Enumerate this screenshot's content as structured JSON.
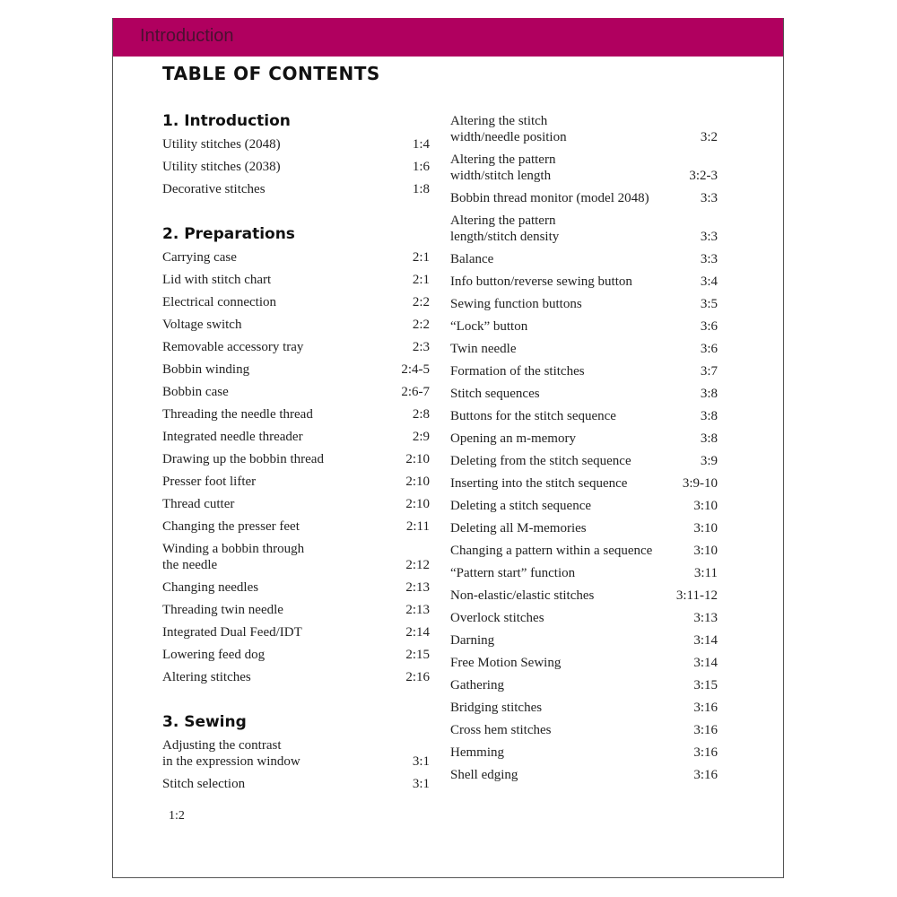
{
  "header": {
    "chapter": "Introduction",
    "banner_color": "#b0005f"
  },
  "title": "TABLE OF CONTENTS",
  "left_column": [
    {
      "heading": "1. Introduction",
      "items": [
        {
          "title": "Utility stitches (2048)",
          "page": "1:4"
        },
        {
          "title": "Utility stitches (2038)",
          "page": "1:6"
        },
        {
          "title": "Decorative stitches",
          "page": "1:8"
        }
      ]
    },
    {
      "heading": "2. Preparations",
      "items": [
        {
          "title": "Carrying case",
          "page": "2:1"
        },
        {
          "title": "Lid with stitch chart",
          "page": "2:1"
        },
        {
          "title": "Electrical connection",
          "page": "2:2"
        },
        {
          "title": "Voltage switch",
          "page": "2:2"
        },
        {
          "title": "Removable accessory tray",
          "page": "2:3"
        },
        {
          "title": "Bobbin winding",
          "page": "2:4-5"
        },
        {
          "title": "Bobbin case",
          "page": "2:6-7"
        },
        {
          "title": "Threading the needle thread",
          "page": "2:8"
        },
        {
          "title": "Integrated needle threader",
          "page": "2:9"
        },
        {
          "title": "Drawing up the bobbin thread",
          "page": "2:10"
        },
        {
          "title": "Presser foot lifter",
          "page": "2:10"
        },
        {
          "title": "Thread cutter",
          "page": "2:10"
        },
        {
          "title": "Changing the presser feet",
          "page": "2:11"
        },
        {
          "title": "Winding a bobbin through\nthe needle",
          "page": "2:12"
        },
        {
          "title": "Changing needles",
          "page": "2:13"
        },
        {
          "title": "Threading twin needle",
          "page": "2:13"
        },
        {
          "title": "Integrated Dual Feed/IDT",
          "page": "2:14"
        },
        {
          "title": "Lowering feed dog",
          "page": "2:15"
        },
        {
          "title": "Altering stitches",
          "page": "2:16"
        }
      ]
    },
    {
      "heading": "3. Sewing",
      "items": [
        {
          "title": "Adjusting the contrast\nin the expression window",
          "page": "3:1"
        },
        {
          "title": "Stitch selection",
          "page": "3:1"
        }
      ]
    }
  ],
  "right_column": [
    {
      "heading": "",
      "items": [
        {
          "title": "Altering the stitch\nwidth/needle position",
          "page": "3:2"
        },
        {
          "title": "Altering the pattern\nwidth/stitch length",
          "page": "3:2-3"
        },
        {
          "title": "Bobbin thread monitor (model 2048)",
          "page": "3:3"
        },
        {
          "title": "Altering the pattern\nlength/stitch density",
          "page": "3:3"
        },
        {
          "title": "Balance",
          "page": "3:3"
        },
        {
          "title": "Info button/reverse sewing button",
          "page": "3:4"
        },
        {
          "title": "Sewing function buttons",
          "page": "3:5"
        },
        {
          "title": "“Lock” button",
          "page": "3:6"
        },
        {
          "title": "Twin needle",
          "page": "3:6"
        },
        {
          "title": "Formation of the stitches",
          "page": "3:7"
        },
        {
          "title": "Stitch sequences",
          "page": "3:8"
        },
        {
          "title": "Buttons for the stitch sequence",
          "page": "3:8"
        },
        {
          "title": "Opening an m-memory",
          "page": "3:8"
        },
        {
          "title": "Deleting from the stitch sequence",
          "page": "3:9"
        },
        {
          "title": "Inserting into the stitch sequence",
          "page": "3:9-10"
        },
        {
          "title": "Deleting a stitch sequence",
          "page": "3:10"
        },
        {
          "title": "Deleting all M-memories",
          "page": "3:10"
        },
        {
          "title": "Changing a pattern within a sequence",
          "page": "3:10"
        },
        {
          "title": "“Pattern start” function",
          "page": "3:11"
        },
        {
          "title": "Non-elastic/elastic stitches",
          "page": "3:11-12"
        },
        {
          "title": "Overlock stitches",
          "page": "3:13"
        },
        {
          "title": "Darning",
          "page": "3:14"
        },
        {
          "title": "Free Motion Sewing",
          "page": "3:14"
        },
        {
          "title": "Gathering",
          "page": "3:15"
        },
        {
          "title": "Bridging stitches",
          "page": "3:16"
        },
        {
          "title": "Cross hem stitches",
          "page": "3:16"
        },
        {
          "title": "Hemming",
          "page": "3:16"
        },
        {
          "title": "Shell edging",
          "page": "3:16"
        }
      ]
    }
  ],
  "folio": "1:2"
}
